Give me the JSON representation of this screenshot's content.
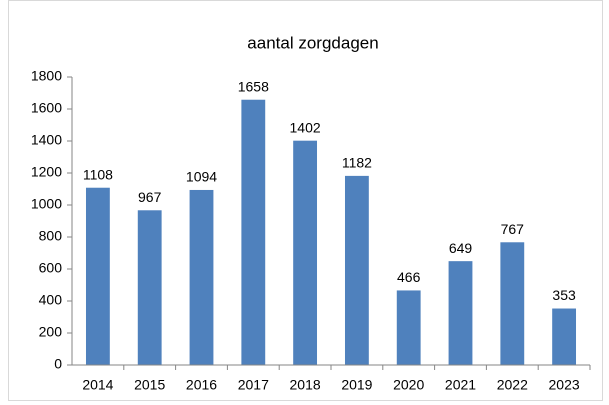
{
  "chart_data": {
    "type": "bar",
    "title": "aantal zorgdagen",
    "categories": [
      "2014",
      "2015",
      "2016",
      "2017",
      "2018",
      "2019",
      "2020",
      "2021",
      "2022",
      "2023"
    ],
    "values": [
      1108,
      967,
      1094,
      1658,
      1402,
      1182,
      466,
      649,
      767,
      353
    ],
    "color": "#4f81bd",
    "ylim": [
      0,
      1800
    ],
    "yticks": [
      0,
      200,
      400,
      600,
      800,
      1000,
      1200,
      1400,
      1600,
      1800
    ],
    "grid": false,
    "data_labels": true
  }
}
